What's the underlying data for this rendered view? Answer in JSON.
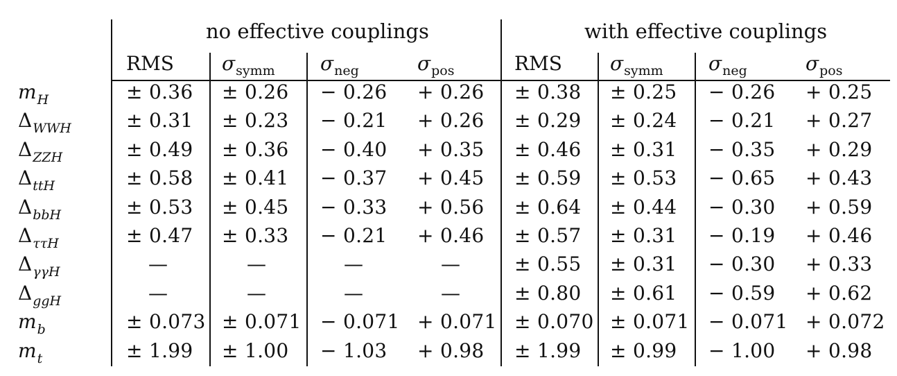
{
  "table": {
    "group_headers": [
      "no effective couplings",
      "with effective couplings"
    ],
    "column_headers": [
      {
        "main": "RMS",
        "sub": ""
      },
      {
        "main": "σ",
        "sub": "symm"
      },
      {
        "main": "σ",
        "sub": "neg"
      },
      {
        "main": "σ",
        "sub": "pos"
      },
      {
        "main": "RMS",
        "sub": ""
      },
      {
        "main": "σ",
        "sub": "symm"
      },
      {
        "main": "σ",
        "sub": "neg"
      },
      {
        "main": "σ",
        "sub": "pos"
      }
    ],
    "rows": [
      {
        "sym": "m",
        "sub": "H",
        "values": [
          "± 0.36",
          "± 0.26",
          "− 0.26",
          "+ 0.26",
          "± 0.38",
          "± 0.25",
          "− 0.26",
          "+ 0.25"
        ]
      },
      {
        "sym": "Δ",
        "sub": "WWH",
        "values": [
          "± 0.31",
          "± 0.23",
          "− 0.21",
          "+ 0.26",
          "± 0.29",
          "± 0.24",
          "− 0.21",
          "+ 0.27"
        ]
      },
      {
        "sym": "Δ",
        "sub": "ZZH",
        "values": [
          "± 0.49",
          "± 0.36",
          "− 0.40",
          "+ 0.35",
          "± 0.46",
          "± 0.31",
          "− 0.35",
          "+ 0.29"
        ]
      },
      {
        "sym": "Δ",
        "sub": "ttH",
        "values": [
          "± 0.58",
          "± 0.41",
          "− 0.37",
          "+ 0.45",
          "± 0.59",
          "± 0.53",
          "− 0.65",
          "+ 0.43"
        ]
      },
      {
        "sym": "Δ",
        "sub": "bbH",
        "values": [
          "± 0.53",
          "± 0.45",
          "− 0.33",
          "+ 0.56",
          "± 0.64",
          "± 0.44",
          "− 0.30",
          "+ 0.59"
        ]
      },
      {
        "sym": "Δ",
        "sub": "ττH",
        "values": [
          "± 0.47",
          "± 0.33",
          "− 0.21",
          "+ 0.46",
          "± 0.57",
          "± 0.31",
          "− 0.19",
          "+ 0.46"
        ]
      },
      {
        "sym": "Δ",
        "sub": "γγH",
        "values": [
          "—",
          "—",
          "—",
          "—",
          "± 0.55",
          "± 0.31",
          "− 0.30",
          "+ 0.33"
        ]
      },
      {
        "sym": "Δ",
        "sub": "ggH",
        "values": [
          "—",
          "—",
          "—",
          "—",
          "± 0.80",
          "± 0.61",
          "− 0.59",
          "+ 0.62"
        ]
      },
      {
        "sym": "m",
        "sub": "b",
        "values": [
          "± 0.073",
          "± 0.071",
          "− 0.071",
          "+ 0.071",
          "± 0.070",
          "± 0.071",
          "− 0.071",
          "+ 0.072"
        ]
      },
      {
        "sym": "m",
        "sub": "t",
        "values": [
          "± 1.99",
          "± 1.00",
          "− 1.03",
          "+ 0.98",
          "± 1.99",
          "± 0.99",
          "− 1.00",
          "+ 0.98"
        ]
      }
    ]
  }
}
